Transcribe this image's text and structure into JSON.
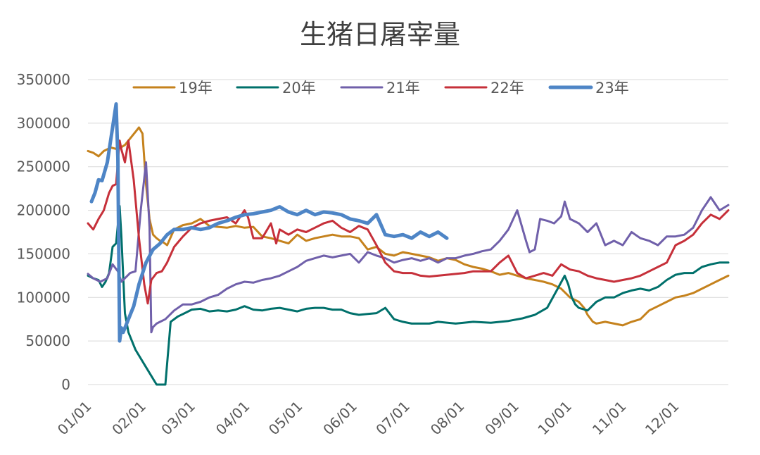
{
  "chart_data": {
    "type": "line",
    "title": "生猪日屠宰量",
    "xlabel": "",
    "ylabel": "",
    "ylim": [
      0,
      350000
    ],
    "yticks": [
      0,
      50000,
      100000,
      150000,
      200000,
      250000,
      300000,
      350000
    ],
    "ytick_labels": [
      "0",
      "50000",
      "100000",
      "150000",
      "200000",
      "250000",
      "300000",
      "350000"
    ],
    "xticks": [
      "01/01",
      "02/01",
      "03/01",
      "04/01",
      "05/01",
      "06/01",
      "07/01",
      "08/01",
      "09/01",
      "10/01",
      "11/01",
      "12/01"
    ],
    "x_unit": "day_of_year",
    "xlim": [
      1,
      365
    ],
    "grid": "horizontal",
    "legend_position": "top",
    "series": [
      {
        "name": "19年",
        "color": "#c5821d",
        "width": 3,
        "x": [
          1,
          4,
          7,
          10,
          14,
          18,
          22,
          26,
          30,
          32,
          34,
          36,
          38,
          40,
          42,
          44,
          46,
          50,
          55,
          60,
          65,
          70,
          75,
          80,
          85,
          90,
          95,
          100,
          105,
          110,
          115,
          120,
          125,
          130,
          135,
          140,
          145,
          150,
          155,
          160,
          165,
          170,
          175,
          180,
          185,
          190,
          195,
          200,
          205,
          210,
          215,
          220,
          225,
          230,
          235,
          240,
          245,
          250,
          255,
          260,
          265,
          270,
          275,
          280,
          283,
          285,
          288,
          290,
          295,
          300,
          305,
          310,
          315,
          320,
          325,
          330,
          335,
          340,
          345,
          350,
          355,
          360,
          365
        ],
        "y": [
          268000,
          266000,
          262000,
          268000,
          272000,
          270000,
          275000,
          285000,
          295000,
          288000,
          230000,
          190000,
          172000,
          168000,
          165000,
          163000,
          160000,
          178000,
          183000,
          185000,
          190000,
          182000,
          181000,
          180000,
          182000,
          180000,
          181000,
          170000,
          168000,
          165000,
          162000,
          172000,
          165000,
          168000,
          170000,
          172000,
          170000,
          170000,
          168000,
          155000,
          158000,
          150000,
          148000,
          152000,
          150000,
          148000,
          146000,
          142000,
          145000,
          143000,
          138000,
          135000,
          133000,
          130000,
          126000,
          128000,
          125000,
          122000,
          120000,
          118000,
          115000,
          110000,
          100000,
          95000,
          88000,
          80000,
          72000,
          70000,
          72000,
          70000,
          68000,
          72000,
          75000,
          85000,
          90000,
          95000,
          100000,
          102000,
          105000,
          110000,
          115000,
          120000,
          125000
        ]
      },
      {
        "name": "20年",
        "color": "#00706b",
        "width": 3,
        "x": [
          1,
          4,
          7,
          9,
          11,
          13,
          15,
          17,
          19,
          20,
          22,
          24,
          28,
          34,
          40,
          44,
          45,
          48,
          52,
          56,
          60,
          65,
          70,
          75,
          80,
          85,
          90,
          95,
          100,
          105,
          110,
          115,
          120,
          125,
          130,
          135,
          140,
          145,
          150,
          155,
          160,
          165,
          170,
          175,
          180,
          185,
          190,
          195,
          200,
          210,
          220,
          230,
          240,
          248,
          255,
          262,
          268,
          272,
          274,
          276,
          278,
          280,
          285,
          290,
          295,
          300,
          305,
          310,
          315,
          320,
          325,
          330,
          335,
          340,
          345,
          350,
          355,
          360,
          365
        ],
        "y": [
          125000,
          122000,
          120000,
          112000,
          118000,
          128000,
          158000,
          162000,
          205000,
          170000,
          82000,
          60000,
          40000,
          20000,
          0,
          0,
          0,
          72000,
          78000,
          82000,
          86000,
          87000,
          84000,
          85000,
          84000,
          86000,
          90000,
          86000,
          85000,
          87000,
          88000,
          86000,
          84000,
          87000,
          88000,
          88000,
          86000,
          86000,
          82000,
          80000,
          81000,
          82000,
          88000,
          75000,
          72000,
          70000,
          70000,
          70000,
          72000,
          70000,
          72000,
          71000,
          73000,
          76000,
          80000,
          88000,
          110000,
          125000,
          115000,
          100000,
          92000,
          88000,
          85000,
          95000,
          100000,
          100000,
          105000,
          108000,
          110000,
          108000,
          112000,
          120000,
          126000,
          128000,
          128000,
          135000,
          138000,
          140000,
          140000
        ]
      },
      {
        "name": "21年",
        "color": "#7060aa",
        "width": 3,
        "x": [
          1,
          4,
          8,
          12,
          15,
          18,
          20,
          22,
          25,
          28,
          31,
          34,
          36,
          37,
          38,
          40,
          42,
          45,
          50,
          55,
          60,
          65,
          70,
          75,
          80,
          85,
          90,
          95,
          100,
          105,
          110,
          115,
          120,
          125,
          130,
          135,
          140,
          145,
          150,
          155,
          160,
          165,
          170,
          175,
          180,
          185,
          190,
          195,
          200,
          205,
          210,
          215,
          220,
          225,
          230,
          235,
          240,
          245,
          250,
          252,
          255,
          258,
          262,
          266,
          270,
          272,
          275,
          280,
          285,
          290,
          295,
          300,
          305,
          310,
          315,
          320,
          325,
          330,
          335,
          340,
          345,
          350,
          355,
          360,
          365
        ],
        "y": [
          127000,
          122000,
          118000,
          122000,
          138000,
          130000,
          118000,
          122000,
          128000,
          130000,
          200000,
          255000,
          180000,
          60000,
          66000,
          70000,
          72000,
          75000,
          85000,
          92000,
          92000,
          95000,
          100000,
          103000,
          110000,
          115000,
          118000,
          117000,
          120000,
          122000,
          125000,
          130000,
          135000,
          142000,
          145000,
          148000,
          146000,
          148000,
          150000,
          140000,
          152000,
          148000,
          145000,
          140000,
          143000,
          145000,
          142000,
          145000,
          140000,
          145000,
          145000,
          148000,
          150000,
          153000,
          155000,
          165000,
          178000,
          200000,
          165000,
          152000,
          155000,
          190000,
          188000,
          185000,
          193000,
          210000,
          190000,
          185000,
          175000,
          185000,
          160000,
          165000,
          160000,
          175000,
          168000,
          165000,
          160000,
          170000,
          170000,
          172000,
          180000,
          200000,
          215000,
          200000,
          206000
        ]
      },
      {
        "name": "22年",
        "color": "#c6303a",
        "width": 3,
        "x": [
          1,
          4,
          7,
          10,
          13,
          15,
          17,
          19,
          20,
          22,
          24,
          27,
          30,
          33,
          35,
          37,
          40,
          43,
          46,
          50,
          55,
          60,
          65,
          70,
          75,
          80,
          85,
          90,
          92,
          95,
          100,
          105,
          108,
          110,
          115,
          120,
          125,
          130,
          135,
          140,
          145,
          150,
          155,
          160,
          165,
          170,
          175,
          180,
          185,
          190,
          195,
          200,
          205,
          210,
          215,
          220,
          225,
          230,
          235,
          240,
          245,
          250,
          255,
          260,
          265,
          270,
          275,
          280,
          285,
          290,
          295,
          300,
          305,
          310,
          315,
          320,
          325,
          330,
          335,
          340,
          345,
          350,
          355,
          360,
          365
        ],
        "y": [
          185000,
          178000,
          190000,
          200000,
          220000,
          228000,
          230000,
          280000,
          270000,
          255000,
          280000,
          235000,
          168000,
          115000,
          93000,
          120000,
          128000,
          130000,
          140000,
          158000,
          170000,
          180000,
          185000,
          188000,
          190000,
          192000,
          185000,
          200000,
          192000,
          168000,
          168000,
          185000,
          162000,
          178000,
          172000,
          178000,
          175000,
          180000,
          185000,
          188000,
          180000,
          175000,
          182000,
          178000,
          160000,
          140000,
          130000,
          128000,
          128000,
          125000,
          124000,
          125000,
          126000,
          127000,
          128000,
          130000,
          130000,
          130000,
          140000,
          148000,
          128000,
          122000,
          125000,
          128000,
          125000,
          138000,
          132000,
          130000,
          125000,
          122000,
          120000,
          118000,
          120000,
          122000,
          125000,
          130000,
          135000,
          140000,
          160000,
          165000,
          172000,
          185000,
          195000,
          190000,
          200000
        ]
      },
      {
        "name": "23年",
        "color": "#4e85c6",
        "width": 5,
        "x": [
          3,
          5,
          7,
          9,
          12,
          15,
          17,
          18,
          19,
          20,
          21,
          24,
          27,
          30,
          34,
          38,
          42,
          46,
          50,
          55,
          60,
          65,
          70,
          75,
          80,
          85,
          90,
          95,
          100,
          105,
          110,
          115,
          120,
          125,
          130,
          135,
          140,
          145,
          150,
          155,
          160,
          165,
          170,
          175,
          180,
          185,
          190,
          195,
          200,
          205
        ],
        "y": [
          210000,
          220000,
          235000,
          234000,
          255000,
          295000,
          322000,
          260000,
          50000,
          65000,
          60000,
          75000,
          90000,
          115000,
          140000,
          155000,
          162000,
          172000,
          178000,
          178000,
          180000,
          178000,
          180000,
          185000,
          188000,
          192000,
          195000,
          196000,
          198000,
          200000,
          204000,
          198000,
          195000,
          200000,
          195000,
          198000,
          197000,
          195000,
          190000,
          188000,
          185000,
          195000,
          172000,
          170000,
          172000,
          168000,
          175000,
          170000,
          175000,
          168000
        ]
      }
    ]
  }
}
